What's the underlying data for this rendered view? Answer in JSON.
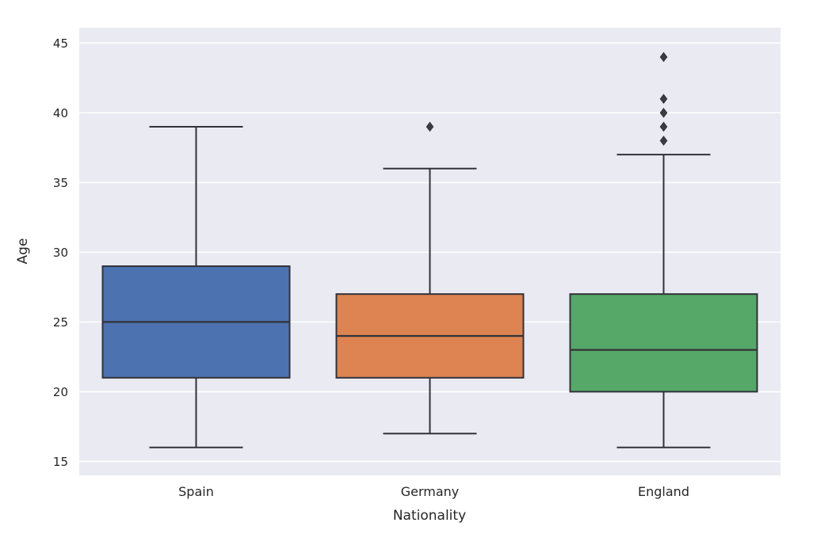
{
  "chart_data": {
    "type": "box",
    "title": "",
    "xlabel": "Nationality",
    "ylabel": "Age",
    "categories": [
      "Spain",
      "Germany",
      "England"
    ],
    "series": [
      {
        "name": "Spain",
        "whisker_low": 16,
        "q1": 21,
        "median": 25,
        "q3": 29,
        "whisker_high": 39,
        "outliers": [],
        "color": "#4c72b0"
      },
      {
        "name": "Germany",
        "whisker_low": 17,
        "q1": 21,
        "median": 24,
        "q3": 27,
        "whisker_high": 36,
        "outliers": [
          39
        ],
        "color": "#dd8452"
      },
      {
        "name": "England",
        "whisker_low": 16,
        "q1": 20,
        "median": 23,
        "q3": 27,
        "whisker_high": 37,
        "outliers": [
          38,
          39,
          40,
          41,
          44
        ],
        "color": "#55a868"
      }
    ],
    "ylim": [
      14,
      46.1
    ],
    "yticks": [
      15,
      20,
      25,
      30,
      35,
      40,
      45
    ],
    "grid": true,
    "legend": "none",
    "colors": {
      "plot_background": "#eaeaf2",
      "grid_line": "#ffffff",
      "box_edge": "#32323a",
      "outlier_fill": "#3b3b43",
      "text": "#262626",
      "figure_background": "#ffffff"
    }
  }
}
